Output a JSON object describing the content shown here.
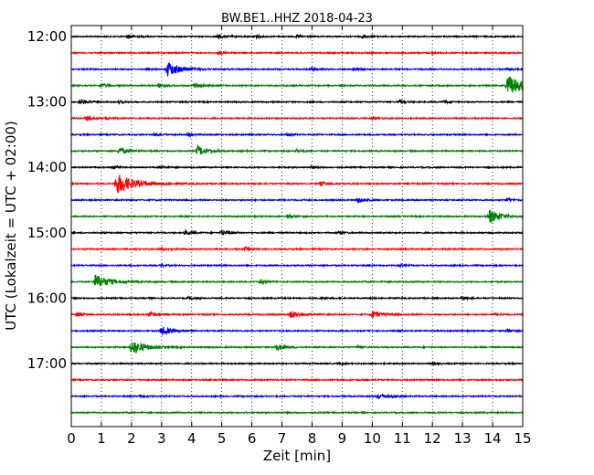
{
  "chart_data": {
    "type": "line",
    "title": "BW.BE1..HHZ 2018-04-23",
    "xlabel": "Zeit  [min]",
    "ylabel": "UTC (Lokalzeit = UTC + 02:00)",
    "xlim": [
      0,
      15
    ],
    "x_ticks": [
      "0",
      "1",
      "2",
      "3",
      "4",
      "5",
      "6",
      "7",
      "8",
      "9",
      "10",
      "11",
      "12",
      "13",
      "14",
      "15"
    ],
    "y_tick_labels": [
      "12:00",
      "13:00",
      "14:00",
      "15:00",
      "16:00",
      "17:00"
    ],
    "grid": "vertical dotted",
    "series_colors": [
      "#000000",
      "#ff0000",
      "#0000ff",
      "#008000"
    ],
    "traces": [
      {
        "start": "12:00",
        "color": "#000000",
        "events": [
          [
            1.9,
            0.25
          ],
          [
            4.9,
            0.25
          ],
          [
            6.1,
            0.2
          ],
          [
            7.5,
            0.15
          ],
          [
            9.7,
            0.2
          ]
        ]
      },
      {
        "start": "12:15",
        "color": "#ff0000",
        "events": [
          [
            4.9,
            0.2
          ],
          [
            12.0,
            0.1
          ]
        ]
      },
      {
        "start": "12:30",
        "color": "#0000ff",
        "events": [
          [
            3.2,
            0.9
          ],
          [
            8.0,
            0.2
          ],
          [
            9.4,
            0.15
          ],
          [
            14.5,
            0.15
          ]
        ]
      },
      {
        "start": "12:45",
        "color": "#008000",
        "events": [
          [
            1.0,
            0.25
          ],
          [
            2.9,
            0.25
          ],
          [
            4.1,
            0.3
          ],
          [
            14.5,
            1.2
          ]
        ]
      },
      {
        "start": "13:00",
        "color": "#000000",
        "events": [
          [
            0.3,
            0.3
          ],
          [
            1.6,
            0.15
          ],
          [
            10.9,
            0.2
          ],
          [
            12.4,
            0.15
          ]
        ]
      },
      {
        "start": "13:15",
        "color": "#ff0000",
        "events": [
          [
            0.5,
            0.25
          ],
          [
            1.2,
            0.15
          ],
          [
            10.0,
            0.2
          ]
        ]
      },
      {
        "start": "13:30",
        "color": "#0000ff",
        "events": [
          [
            2.8,
            0.15
          ],
          [
            3.9,
            0.15
          ],
          [
            7.2,
            0.15
          ]
        ]
      },
      {
        "start": "13:45",
        "color": "#008000",
        "events": [
          [
            1.6,
            0.45
          ],
          [
            4.2,
            0.6
          ],
          [
            7.5,
            0.2
          ]
        ]
      },
      {
        "start": "14:00",
        "color": "#000000",
        "events": [
          [
            1.4,
            0.2
          ],
          [
            3.0,
            0.15
          ],
          [
            8.0,
            0.15
          ]
        ]
      },
      {
        "start": "14:15",
        "color": "#ff0000",
        "events": [
          [
            1.5,
            1.3
          ],
          [
            8.3,
            0.25
          ]
        ]
      },
      {
        "start": "14:30",
        "color": "#0000ff",
        "events": [
          [
            9.5,
            0.35
          ],
          [
            14.5,
            0.2
          ]
        ]
      },
      {
        "start": "14:45",
        "color": "#008000",
        "events": [
          [
            7.2,
            0.25
          ],
          [
            13.9,
            0.8
          ]
        ]
      },
      {
        "start": "15:00",
        "color": "#000000",
        "events": [
          [
            3.8,
            0.25
          ],
          [
            5.0,
            0.35
          ],
          [
            8.9,
            0.15
          ]
        ]
      },
      {
        "start": "15:15",
        "color": "#ff0000",
        "events": [
          [
            3.0,
            0.15
          ],
          [
            5.8,
            0.2
          ]
        ]
      },
      {
        "start": "15:30",
        "color": "#0000ff",
        "events": [
          [
            3.0,
            0.15
          ],
          [
            10.9,
            0.15
          ]
        ]
      },
      {
        "start": "15:45",
        "color": "#008000",
        "events": [
          [
            0.8,
            0.9
          ],
          [
            6.3,
            0.25
          ]
        ]
      },
      {
        "start": "16:00",
        "color": "#000000",
        "events": [
          [
            3.9,
            0.15
          ],
          [
            8.3,
            0.15
          ],
          [
            13.0,
            0.15
          ]
        ]
      },
      {
        "start": "16:15",
        "color": "#ff0000",
        "events": [
          [
            0.2,
            0.25
          ],
          [
            2.6,
            0.3
          ],
          [
            7.3,
            0.45
          ],
          [
            10.0,
            0.45
          ],
          [
            14.1,
            0.15
          ]
        ]
      },
      {
        "start": "16:30",
        "color": "#0000ff",
        "events": [
          [
            3.0,
            0.55
          ],
          [
            14.5,
            0.2
          ]
        ]
      },
      {
        "start": "16:45",
        "color": "#008000",
        "events": [
          [
            2.0,
            0.9
          ],
          [
            6.8,
            0.45
          ],
          [
            9.5,
            0.15
          ]
        ]
      },
      {
        "start": "17:00",
        "color": "#000000",
        "events": [
          [
            8.9,
            0.15
          ],
          [
            12.0,
            0.15
          ]
        ]
      },
      {
        "start": "17:15",
        "color": "#ff0000",
        "events": []
      },
      {
        "start": "17:30",
        "color": "#0000ff",
        "events": [
          [
            2.3,
            0.15
          ],
          [
            10.2,
            0.25
          ],
          [
            10.7,
            0.15
          ]
        ]
      },
      {
        "start": "17:45",
        "color": "#008000",
        "events": []
      }
    ]
  }
}
